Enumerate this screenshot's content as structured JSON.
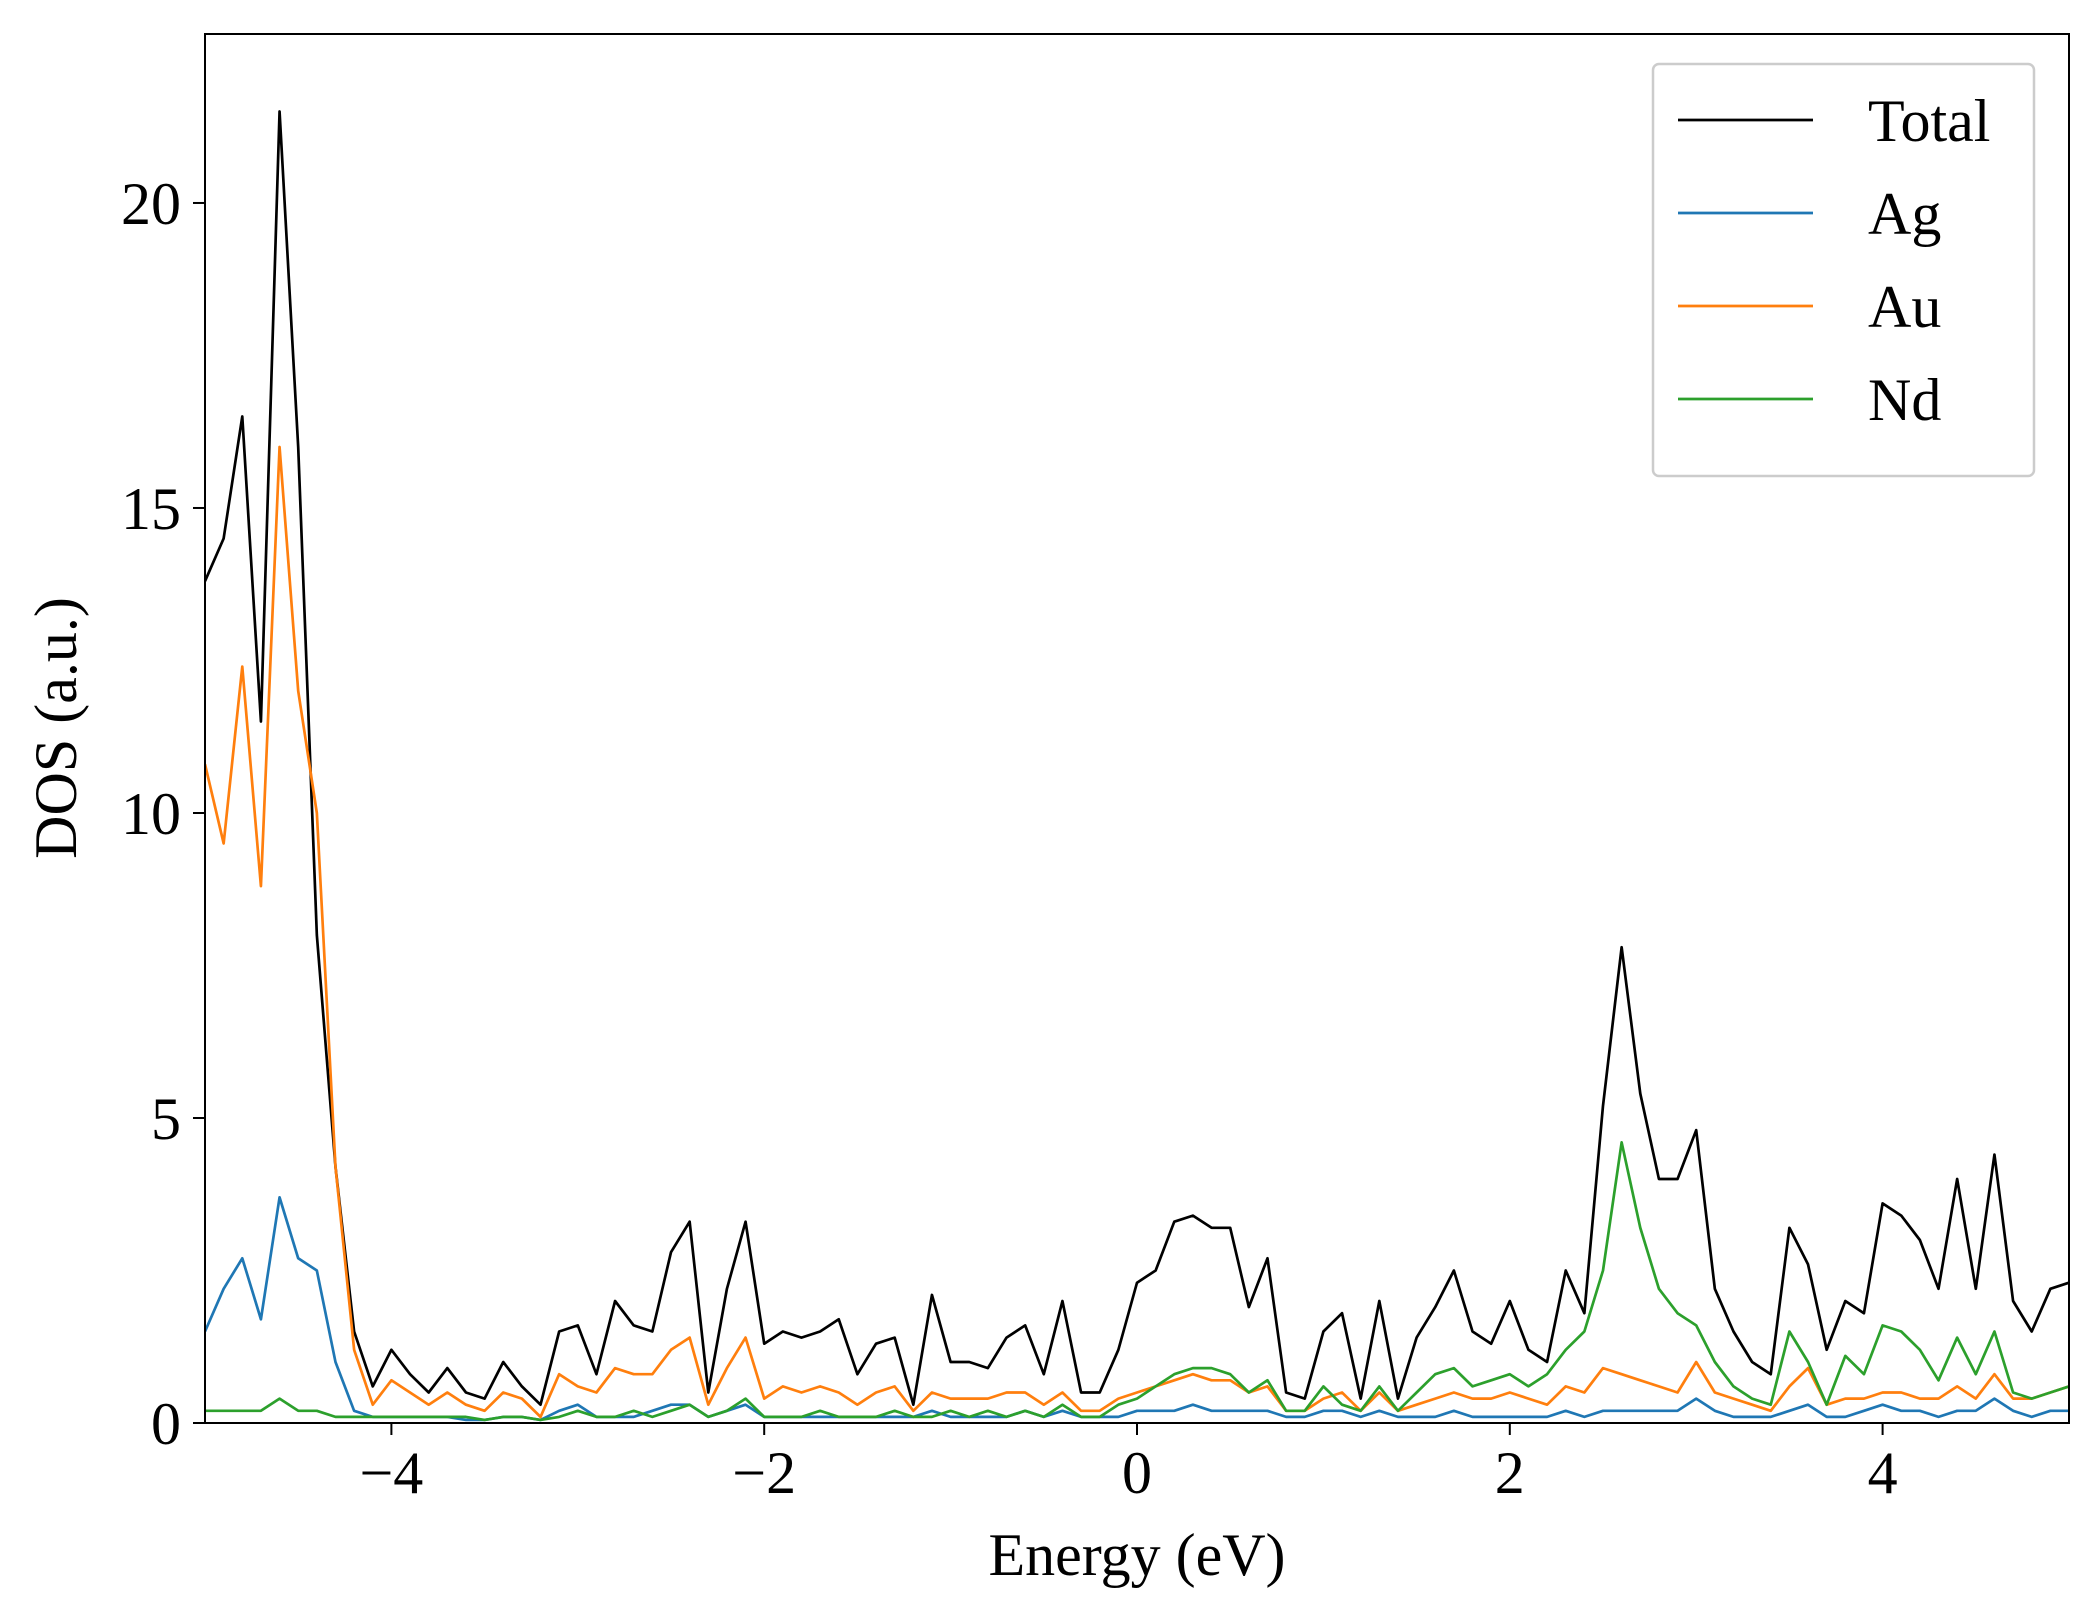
{
  "chart_data": {
    "type": "line",
    "x_label": "Energy (eV)",
    "y_label": "DOS (a.u.)",
    "xlim": [
      -5,
      5
    ],
    "ylim": [
      0,
      22.77
    ],
    "xticks": [
      {
        "value": -4,
        "label": "−4"
      },
      {
        "value": -2,
        "label": "−2"
      },
      0,
      2,
      4
    ],
    "yticks": [
      0,
      5,
      10,
      15,
      20
    ],
    "grid": false,
    "legend": "upper right",
    "x": [
      -5,
      -4.9,
      -4.8,
      -4.7,
      -4.6,
      -4.5,
      -4.4,
      -4.3,
      -4.2,
      -4.1,
      -4,
      -3.9,
      -3.8,
      -3.7,
      -3.6,
      -3.5,
      -3.4,
      -3.3,
      -3.2,
      -3.1,
      -3,
      -2.9,
      -2.8,
      -2.7,
      -2.6,
      -2.5,
      -2.4,
      -2.3,
      -2.2,
      -2.1,
      -2,
      -1.9,
      -1.8,
      -1.7,
      -1.6,
      -1.5,
      -1.4,
      -1.3,
      -1.2,
      -1.1,
      -1,
      -0.9,
      -0.8,
      -0.7,
      -0.6,
      -0.5,
      -0.4,
      -0.3,
      -0.2,
      -0.1,
      0,
      0.1,
      0.2,
      0.3,
      0.4,
      0.5,
      0.6,
      0.7,
      0.8,
      0.9,
      1,
      1.1,
      1.2,
      1.3,
      1.4,
      1.5,
      1.6,
      1.7,
      1.8,
      1.9,
      2,
      2.1,
      2.2,
      2.3,
      2.4,
      2.5,
      2.6,
      2.7,
      2.8,
      2.9,
      3,
      3.1,
      3.2,
      3.3,
      3.4,
      3.5,
      3.6,
      3.7,
      3.8,
      3.9,
      4,
      4.1,
      4.2,
      4.3,
      4.4,
      4.5,
      4.6,
      4.7,
      4.8,
      4.9,
      5
    ],
    "series": [
      {
        "name": "Total",
        "color": "#000000",
        "values": [
          13.8,
          14.5,
          16.5,
          11.5,
          21.5,
          16.0,
          8.0,
          4.2,
          1.5,
          0.6,
          1.2,
          0.8,
          0.5,
          0.9,
          0.5,
          0.4,
          1.0,
          0.6,
          0.3,
          1.5,
          1.6,
          0.8,
          2.0,
          1.6,
          1.5,
          2.8,
          3.3,
          0.5,
          2.2,
          3.3,
          1.3,
          1.5,
          1.4,
          1.5,
          1.7,
          0.8,
          1.3,
          1.4,
          0.3,
          2.1,
          1.0,
          1.0,
          0.9,
          1.4,
          1.6,
          0.8,
          2.0,
          0.5,
          0.5,
          1.2,
          2.3,
          2.5,
          3.3,
          3.4,
          3.2,
          3.2,
          1.9,
          2.7,
          0.5,
          0.4,
          1.5,
          1.8,
          0.4,
          2.0,
          0.4,
          1.4,
          1.9,
          2.5,
          1.5,
          1.3,
          2.0,
          1.2,
          1.0,
          2.5,
          1.8,
          5.2,
          7.8,
          5.4,
          4.0,
          4.0,
          4.8,
          2.2,
          1.5,
          1.0,
          0.8,
          3.2,
          2.6,
          1.2,
          2.0,
          1.8,
          3.6,
          3.4,
          3.0,
          2.2,
          4.0,
          2.2,
          4.4,
          2.0,
          1.5,
          2.2,
          2.3
        ]
      },
      {
        "name": "Ag",
        "color": "#1f77b4",
        "values": [
          1.5,
          2.2,
          2.7,
          1.7,
          3.7,
          2.7,
          2.5,
          1.0,
          0.2,
          0.1,
          0.1,
          0.1,
          0.1,
          0.1,
          0.05,
          0.05,
          0.1,
          0.1,
          0.05,
          0.2,
          0.3,
          0.1,
          0.1,
          0.1,
          0.2,
          0.3,
          0.3,
          0.1,
          0.2,
          0.3,
          0.1,
          0.1,
          0.1,
          0.1,
          0.1,
          0.1,
          0.1,
          0.1,
          0.1,
          0.2,
          0.1,
          0.1,
          0.1,
          0.1,
          0.2,
          0.1,
          0.2,
          0.1,
          0.1,
          0.1,
          0.2,
          0.2,
          0.2,
          0.3,
          0.2,
          0.2,
          0.2,
          0.2,
          0.1,
          0.1,
          0.2,
          0.2,
          0.1,
          0.2,
          0.1,
          0.1,
          0.1,
          0.2,
          0.1,
          0.1,
          0.1,
          0.1,
          0.1,
          0.2,
          0.1,
          0.2,
          0.2,
          0.2,
          0.2,
          0.2,
          0.4,
          0.2,
          0.1,
          0.1,
          0.1,
          0.2,
          0.3,
          0.1,
          0.1,
          0.2,
          0.3,
          0.2,
          0.2,
          0.1,
          0.2,
          0.2,
          0.4,
          0.2,
          0.1,
          0.2,
          0.2
        ]
      },
      {
        "name": "Au",
        "color": "#ff7f0e",
        "values": [
          10.8,
          9.5,
          12.4,
          8.8,
          16.0,
          12.0,
          10.0,
          4.2,
          1.2,
          0.3,
          0.7,
          0.5,
          0.3,
          0.5,
          0.3,
          0.2,
          0.5,
          0.4,
          0.1,
          0.8,
          0.6,
          0.5,
          0.9,
          0.8,
          0.8,
          1.2,
          1.4,
          0.3,
          0.9,
          1.4,
          0.4,
          0.6,
          0.5,
          0.6,
          0.5,
          0.3,
          0.5,
          0.6,
          0.2,
          0.5,
          0.4,
          0.4,
          0.4,
          0.5,
          0.5,
          0.3,
          0.5,
          0.2,
          0.2,
          0.4,
          0.5,
          0.6,
          0.7,
          0.8,
          0.7,
          0.7,
          0.5,
          0.6,
          0.2,
          0.2,
          0.4,
          0.5,
          0.2,
          0.5,
          0.2,
          0.3,
          0.4,
          0.5,
          0.4,
          0.4,
          0.5,
          0.4,
          0.3,
          0.6,
          0.5,
          0.9,
          0.8,
          0.7,
          0.6,
          0.5,
          1.0,
          0.5,
          0.4,
          0.3,
          0.2,
          0.6,
          0.9,
          0.3,
          0.4,
          0.4,
          0.5,
          0.5,
          0.4,
          0.4,
          0.6,
          0.4,
          0.8,
          0.4,
          0.4,
          0.5,
          0.6
        ]
      },
      {
        "name": "Nd",
        "color": "#2ca02c",
        "values": [
          0.2,
          0.2,
          0.2,
          0.2,
          0.4,
          0.2,
          0.2,
          0.1,
          0.1,
          0.1,
          0.1,
          0.1,
          0.1,
          0.1,
          0.1,
          0.05,
          0.1,
          0.1,
          0.05,
          0.1,
          0.2,
          0.1,
          0.1,
          0.2,
          0.1,
          0.2,
          0.3,
          0.1,
          0.2,
          0.4,
          0.1,
          0.1,
          0.1,
          0.2,
          0.1,
          0.1,
          0.1,
          0.2,
          0.1,
          0.1,
          0.2,
          0.1,
          0.2,
          0.1,
          0.2,
          0.1,
          0.3,
          0.1,
          0.1,
          0.3,
          0.4,
          0.6,
          0.8,
          0.9,
          0.9,
          0.8,
          0.5,
          0.7,
          0.2,
          0.2,
          0.6,
          0.3,
          0.2,
          0.6,
          0.2,
          0.5,
          0.8,
          0.9,
          0.6,
          0.7,
          0.8,
          0.6,
          0.8,
          1.2,
          1.5,
          2.5,
          4.6,
          3.2,
          2.2,
          1.8,
          1.6,
          1.0,
          0.6,
          0.4,
          0.3,
          1.5,
          1.0,
          0.3,
          1.1,
          0.8,
          1.6,
          1.5,
          1.2,
          0.7,
          1.4,
          0.8,
          1.5,
          0.5,
          0.4,
          0.5,
          0.6
        ]
      }
    ]
  }
}
